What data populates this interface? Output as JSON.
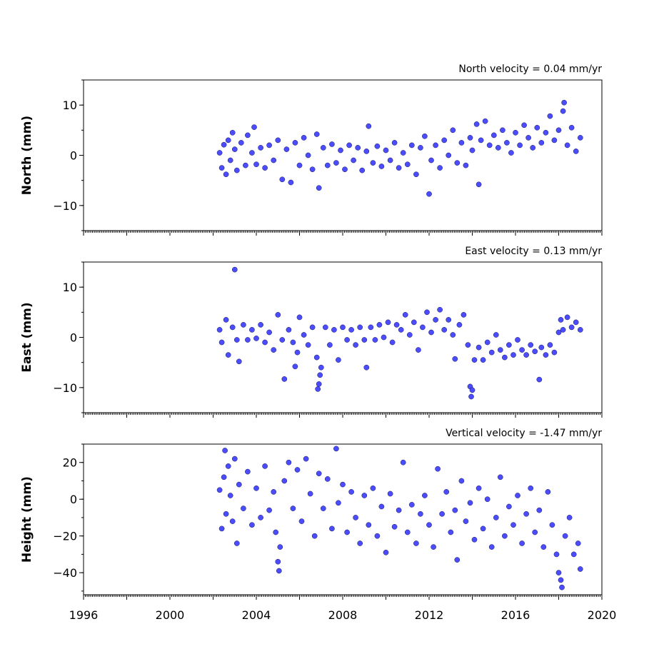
{
  "chart_data": [
    {
      "type": "scatter",
      "title": "North velocity = 0.04 mm/yr",
      "ylabel": "North (mm)",
      "xlim": [
        1996,
        2020
      ],
      "ylim": [
        -15,
        15
      ],
      "yticks": [
        10,
        0,
        -10
      ],
      "ytick_labels": [
        "10",
        "0",
        "−10"
      ],
      "xticks": [
        1996,
        1998,
        2000,
        2002,
        2004,
        2006,
        2008,
        2010,
        2012,
        2014,
        2016,
        2018,
        2020
      ],
      "xtick_labels": [],
      "color": "#4b4bff",
      "series_points": [
        [
          2002.3,
          0.5
        ],
        [
          2002.4,
          -2.5
        ],
        [
          2002.5,
          2.1
        ],
        [
          2002.6,
          -3.8
        ],
        [
          2002.7,
          3.0
        ],
        [
          2002.8,
          -1.0
        ],
        [
          2002.9,
          4.5
        ],
        [
          2003.0,
          1.2
        ],
        [
          2003.1,
          -3.0
        ],
        [
          2003.3,
          2.5
        ],
        [
          2003.5,
          -2.0
        ],
        [
          2003.6,
          4.0
        ],
        [
          2003.8,
          0.5
        ],
        [
          2003.9,
          5.6
        ],
        [
          2004.0,
          -1.8
        ],
        [
          2004.2,
          1.5
        ],
        [
          2004.4,
          -2.5
        ],
        [
          2004.6,
          2.0
        ],
        [
          2004.8,
          -1.0
        ],
        [
          2005.0,
          3.0
        ],
        [
          2005.2,
          -4.8
        ],
        [
          2005.4,
          1.2
        ],
        [
          2005.6,
          -5.4
        ],
        [
          2005.8,
          2.5
        ],
        [
          2006.0,
          -2.0
        ],
        [
          2006.2,
          3.5
        ],
        [
          2006.4,
          0.0
        ],
        [
          2006.6,
          -2.8
        ],
        [
          2006.8,
          4.2
        ],
        [
          2006.9,
          -6.5
        ],
        [
          2007.1,
          1.5
        ],
        [
          2007.3,
          -2.0
        ],
        [
          2007.5,
          2.2
        ],
        [
          2007.7,
          -1.5
        ],
        [
          2007.9,
          1.0
        ],
        [
          2008.1,
          -2.8
        ],
        [
          2008.3,
          2.0
        ],
        [
          2008.5,
          -1.0
        ],
        [
          2008.7,
          1.5
        ],
        [
          2008.9,
          -3.0
        ],
        [
          2009.1,
          0.8
        ],
        [
          2009.2,
          5.8
        ],
        [
          2009.4,
          -1.5
        ],
        [
          2009.6,
          1.8
        ],
        [
          2009.8,
          -2.2
        ],
        [
          2010.0,
          1.0
        ],
        [
          2010.2,
          -1.0
        ],
        [
          2010.4,
          2.5
        ],
        [
          2010.6,
          -2.5
        ],
        [
          2010.8,
          0.5
        ],
        [
          2011.0,
          -1.8
        ],
        [
          2011.2,
          2.0
        ],
        [
          2011.4,
          -3.8
        ],
        [
          2011.6,
          1.5
        ],
        [
          2011.8,
          3.8
        ],
        [
          2012.0,
          -7.7
        ],
        [
          2012.1,
          -1.0
        ],
        [
          2012.3,
          2.0
        ],
        [
          2012.5,
          -2.5
        ],
        [
          2012.7,
          3.0
        ],
        [
          2012.9,
          0.0
        ],
        [
          2013.1,
          5.0
        ],
        [
          2013.3,
          -1.5
        ],
        [
          2013.5,
          2.5
        ],
        [
          2013.7,
          -2.0
        ],
        [
          2013.9,
          3.5
        ],
        [
          2014.0,
          1.0
        ],
        [
          2014.2,
          6.2
        ],
        [
          2014.3,
          -5.8
        ],
        [
          2014.4,
          3.0
        ],
        [
          2014.6,
          6.8
        ],
        [
          2014.8,
          2.0
        ],
        [
          2015.0,
          4.0
        ],
        [
          2015.2,
          1.5
        ],
        [
          2015.4,
          5.0
        ],
        [
          2015.6,
          2.5
        ],
        [
          2015.8,
          0.5
        ],
        [
          2016.0,
          4.5
        ],
        [
          2016.2,
          2.0
        ],
        [
          2016.4,
          6.0
        ],
        [
          2016.6,
          3.5
        ],
        [
          2016.8,
          1.5
        ],
        [
          2017.0,
          5.5
        ],
        [
          2017.2,
          2.5
        ],
        [
          2017.4,
          4.5
        ],
        [
          2017.6,
          7.8
        ],
        [
          2017.8,
          3.0
        ],
        [
          2018.0,
          5.0
        ],
        [
          2018.2,
          8.8
        ],
        [
          2018.25,
          10.5
        ],
        [
          2018.4,
          2.0
        ],
        [
          2018.6,
          5.5
        ],
        [
          2018.8,
          0.8
        ],
        [
          2019.0,
          3.5
        ]
      ]
    },
    {
      "type": "scatter",
      "title": "East velocity = 0.13 mm/yr",
      "ylabel": "East (mm)",
      "xlim": [
        1996,
        2020
      ],
      "ylim": [
        -15,
        15
      ],
      "yticks": [
        10,
        0,
        -10
      ],
      "ytick_labels": [
        "10",
        "0",
        "−10"
      ],
      "xticks": [
        1996,
        1998,
        2000,
        2002,
        2004,
        2006,
        2008,
        2010,
        2012,
        2014,
        2016,
        2018,
        2020
      ],
      "xtick_labels": [],
      "color": "#4b4bff",
      "series_points": [
        [
          2002.3,
          1.5
        ],
        [
          2002.4,
          -1.0
        ],
        [
          2002.6,
          3.5
        ],
        [
          2002.7,
          -3.5
        ],
        [
          2002.9,
          2.0
        ],
        [
          2003.0,
          13.5
        ],
        [
          2003.1,
          -0.5
        ],
        [
          2003.2,
          -4.8
        ],
        [
          2003.4,
          2.5
        ],
        [
          2003.6,
          -0.5
        ],
        [
          2003.8,
          1.5
        ],
        [
          2004.0,
          -0.2
        ],
        [
          2004.2,
          2.5
        ],
        [
          2004.4,
          -1.0
        ],
        [
          2004.6,
          1.0
        ],
        [
          2004.8,
          -2.5
        ],
        [
          2005.0,
          4.5
        ],
        [
          2005.2,
          -0.5
        ],
        [
          2005.3,
          -8.3
        ],
        [
          2005.5,
          1.5
        ],
        [
          2005.7,
          -1.0
        ],
        [
          2005.8,
          -5.8
        ],
        [
          2005.9,
          -3.0
        ],
        [
          2006.0,
          4.0
        ],
        [
          2006.2,
          0.5
        ],
        [
          2006.4,
          -1.5
        ],
        [
          2006.6,
          2.0
        ],
        [
          2006.8,
          -4.0
        ],
        [
          2006.85,
          -10.3
        ],
        [
          2006.9,
          -9.3
        ],
        [
          2006.95,
          -7.5
        ],
        [
          2007.0,
          -6.0
        ],
        [
          2007.2,
          2.0
        ],
        [
          2007.4,
          -1.5
        ],
        [
          2007.6,
          1.5
        ],
        [
          2007.8,
          -4.5
        ],
        [
          2008.0,
          2.0
        ],
        [
          2008.2,
          -0.5
        ],
        [
          2008.4,
          1.5
        ],
        [
          2008.6,
          -1.5
        ],
        [
          2008.8,
          2.0
        ],
        [
          2009.0,
          -0.5
        ],
        [
          2009.1,
          -6.0
        ],
        [
          2009.3,
          2.0
        ],
        [
          2009.5,
          -0.5
        ],
        [
          2009.7,
          2.5
        ],
        [
          2009.9,
          0.0
        ],
        [
          2010.1,
          3.0
        ],
        [
          2010.3,
          -1.0
        ],
        [
          2010.5,
          2.5
        ],
        [
          2010.7,
          1.5
        ],
        [
          2010.9,
          4.5
        ],
        [
          2011.1,
          0.5
        ],
        [
          2011.3,
          3.0
        ],
        [
          2011.5,
          -2.5
        ],
        [
          2011.7,
          2.0
        ],
        [
          2011.9,
          5.0
        ],
        [
          2012.1,
          1.0
        ],
        [
          2012.3,
          3.5
        ],
        [
          2012.5,
          5.5
        ],
        [
          2012.7,
          1.5
        ],
        [
          2012.9,
          3.5
        ],
        [
          2013.1,
          0.5
        ],
        [
          2013.2,
          -4.3
        ],
        [
          2013.4,
          2.5
        ],
        [
          2013.6,
          4.5
        ],
        [
          2013.8,
          -1.5
        ],
        [
          2013.9,
          -9.8
        ],
        [
          2013.95,
          -11.8
        ],
        [
          2014.0,
          -10.5
        ],
        [
          2014.1,
          -4.5
        ],
        [
          2014.3,
          -2.0
        ],
        [
          2014.5,
          -4.5
        ],
        [
          2014.7,
          -1.0
        ],
        [
          2014.9,
          -3.0
        ],
        [
          2015.1,
          0.5
        ],
        [
          2015.3,
          -2.5
        ],
        [
          2015.5,
          -4.0
        ],
        [
          2015.7,
          -1.5
        ],
        [
          2015.9,
          -3.5
        ],
        [
          2016.1,
          -0.5
        ],
        [
          2016.3,
          -2.5
        ],
        [
          2016.5,
          -3.5
        ],
        [
          2016.7,
          -1.5
        ],
        [
          2016.9,
          -2.8
        ],
        [
          2017.1,
          -8.4
        ],
        [
          2017.2,
          -2.0
        ],
        [
          2017.4,
          -3.5
        ],
        [
          2017.6,
          -1.5
        ],
        [
          2017.8,
          -3.0
        ],
        [
          2018.0,
          1.0
        ],
        [
          2018.1,
          3.5
        ],
        [
          2018.2,
          1.5
        ],
        [
          2018.4,
          4.0
        ],
        [
          2018.6,
          2.0
        ],
        [
          2018.8,
          3.0
        ],
        [
          2019.0,
          1.5
        ]
      ]
    },
    {
      "type": "scatter",
      "title": "Vertical velocity = -1.47 mm/yr",
      "ylabel": "Height (mm)",
      "xlim": [
        1996,
        2020
      ],
      "ylim": [
        -52,
        30
      ],
      "yticks": [
        20,
        0,
        -20,
        -40
      ],
      "ytick_labels": [
        "20",
        "0",
        "−20",
        "−40"
      ],
      "xticks": [
        1996,
        1998,
        2000,
        2002,
        2004,
        2006,
        2008,
        2010,
        2012,
        2014,
        2016,
        2018,
        2020
      ],
      "xtick_labels": [
        "1996",
        "",
        "2000",
        "",
        "2004",
        "",
        "2008",
        "",
        "2012",
        "",
        "2016",
        "",
        "2020"
      ],
      "color": "#4b4bff",
      "series_points": [
        [
          2002.3,
          5.0
        ],
        [
          2002.4,
          -16.0
        ],
        [
          2002.5,
          12.0
        ],
        [
          2002.55,
          26.5
        ],
        [
          2002.6,
          -8.0
        ],
        [
          2002.7,
          18.0
        ],
        [
          2002.8,
          2.0
        ],
        [
          2002.9,
          -12.0
        ],
        [
          2003.0,
          22.0
        ],
        [
          2003.1,
          -24.0
        ],
        [
          2003.2,
          8.0
        ],
        [
          2003.4,
          -5.0
        ],
        [
          2003.6,
          15.0
        ],
        [
          2003.8,
          -14.0
        ],
        [
          2004.0,
          6.0
        ],
        [
          2004.2,
          -10.0
        ],
        [
          2004.4,
          18.0
        ],
        [
          2004.6,
          -6.0
        ],
        [
          2004.8,
          4.0
        ],
        [
          2004.9,
          -18.0
        ],
        [
          2005.0,
          -34.0
        ],
        [
          2005.05,
          -39.0
        ],
        [
          2005.1,
          -26.0
        ],
        [
          2005.3,
          10.0
        ],
        [
          2005.5,
          20.0
        ],
        [
          2005.7,
          -5.0
        ],
        [
          2005.9,
          16.0
        ],
        [
          2006.1,
          -12.0
        ],
        [
          2006.3,
          22.0
        ],
        [
          2006.5,
          3.0
        ],
        [
          2006.7,
          -20.0
        ],
        [
          2006.9,
          14.0
        ],
        [
          2007.1,
          -5.0
        ],
        [
          2007.3,
          11.0
        ],
        [
          2007.5,
          -16.0
        ],
        [
          2007.7,
          27.5
        ],
        [
          2007.8,
          -2.0
        ],
        [
          2008.0,
          8.0
        ],
        [
          2008.2,
          -18.0
        ],
        [
          2008.4,
          4.0
        ],
        [
          2008.6,
          -10.0
        ],
        [
          2008.8,
          -24.0
        ],
        [
          2009.0,
          2.0
        ],
        [
          2009.2,
          -14.0
        ],
        [
          2009.4,
          6.0
        ],
        [
          2009.6,
          -20.0
        ],
        [
          2009.8,
          -4.0
        ],
        [
          2010.0,
          -29.0
        ],
        [
          2010.2,
          3.0
        ],
        [
          2010.4,
          -15.0
        ],
        [
          2010.6,
          -6.0
        ],
        [
          2010.8,
          20.0
        ],
        [
          2011.0,
          -18.0
        ],
        [
          2011.2,
          -3.0
        ],
        [
          2011.4,
          -24.0
        ],
        [
          2011.6,
          -8.0
        ],
        [
          2011.8,
          2.0
        ],
        [
          2012.0,
          -14.0
        ],
        [
          2012.2,
          -26.0
        ],
        [
          2012.4,
          16.5
        ],
        [
          2012.6,
          -8.0
        ],
        [
          2012.8,
          4.0
        ],
        [
          2013.0,
          -18.0
        ],
        [
          2013.2,
          -6.0
        ],
        [
          2013.3,
          -33.0
        ],
        [
          2013.5,
          10.0
        ],
        [
          2013.7,
          -12.0
        ],
        [
          2013.9,
          -2.0
        ],
        [
          2014.1,
          -22.0
        ],
        [
          2014.3,
          6.0
        ],
        [
          2014.5,
          -16.0
        ],
        [
          2014.7,
          0.0
        ],
        [
          2014.9,
          -26.0
        ],
        [
          2015.1,
          -10.0
        ],
        [
          2015.3,
          12.0
        ],
        [
          2015.5,
          -20.0
        ],
        [
          2015.7,
          -4.0
        ],
        [
          2015.9,
          -14.0
        ],
        [
          2016.1,
          2.0
        ],
        [
          2016.3,
          -24.0
        ],
        [
          2016.5,
          -8.0
        ],
        [
          2016.7,
          6.0
        ],
        [
          2016.9,
          -18.0
        ],
        [
          2017.1,
          -6.0
        ],
        [
          2017.3,
          -26.0
        ],
        [
          2017.5,
          4.0
        ],
        [
          2017.7,
          -14.0
        ],
        [
          2017.9,
          -30.0
        ],
        [
          2018.0,
          -40.0
        ],
        [
          2018.1,
          -44.0
        ],
        [
          2018.15,
          -48.0
        ],
        [
          2018.3,
          -20.0
        ],
        [
          2018.5,
          -10.0
        ],
        [
          2018.7,
          -30.0
        ],
        [
          2018.9,
          -24.0
        ],
        [
          2019.0,
          -38.0
        ]
      ]
    }
  ]
}
